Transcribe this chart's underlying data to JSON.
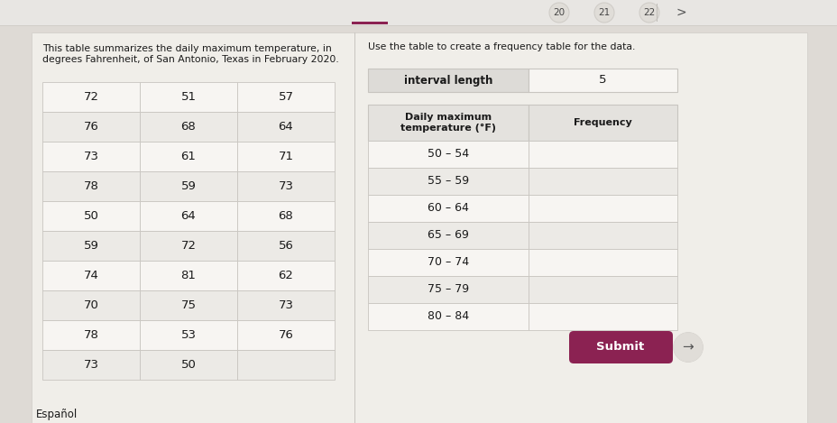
{
  "title_left": "This table summarizes the daily maximum temperature, in\ndegrees Fahrenheit, of San Antonio, Texas in February 2020.",
  "title_right": "Use the table to create a frequency table for the data.",
  "data_table": [
    [
      "72",
      "51",
      "57"
    ],
    [
      "76",
      "68",
      "64"
    ],
    [
      "73",
      "61",
      "71"
    ],
    [
      "78",
      "59",
      "73"
    ],
    [
      "50",
      "64",
      "68"
    ],
    [
      "59",
      "72",
      "56"
    ],
    [
      "74",
      "81",
      "62"
    ],
    [
      "70",
      "75",
      "73"
    ],
    [
      "78",
      "53",
      "76"
    ],
    [
      "73",
      "50",
      ""
    ]
  ],
  "interval_label": "interval length",
  "interval_value": "5",
  "freq_header_col1": "Daily maximum\ntemperature (°F)",
  "freq_header_col2": "Frequency",
  "freq_rows": [
    "50 – 54",
    "55 – 59",
    "60 – 64",
    "65 – 69",
    "70 – 74",
    "75 – 79",
    "80 – 84"
  ],
  "submit_label": "Submit",
  "nav_bg": "#e8e6e3",
  "main_bg": "#dedad5",
  "panel_bg": "#f0eee9",
  "cell_bg_light": "#f7f5f2",
  "cell_bg_dark": "#eceae6",
  "header_cell_bg": "#e4e2de",
  "interval_header_bg": "#dddbd7",
  "submit_color": "#8b2252",
  "text_color": "#1a1a1a",
  "border_color": "#c8c5c0",
  "nav_border": "#d0cdc8",
  "espanyol_label": "Español",
  "nav_circles": [
    "20",
    "21",
    "22"
  ],
  "nav_arrow": ">"
}
